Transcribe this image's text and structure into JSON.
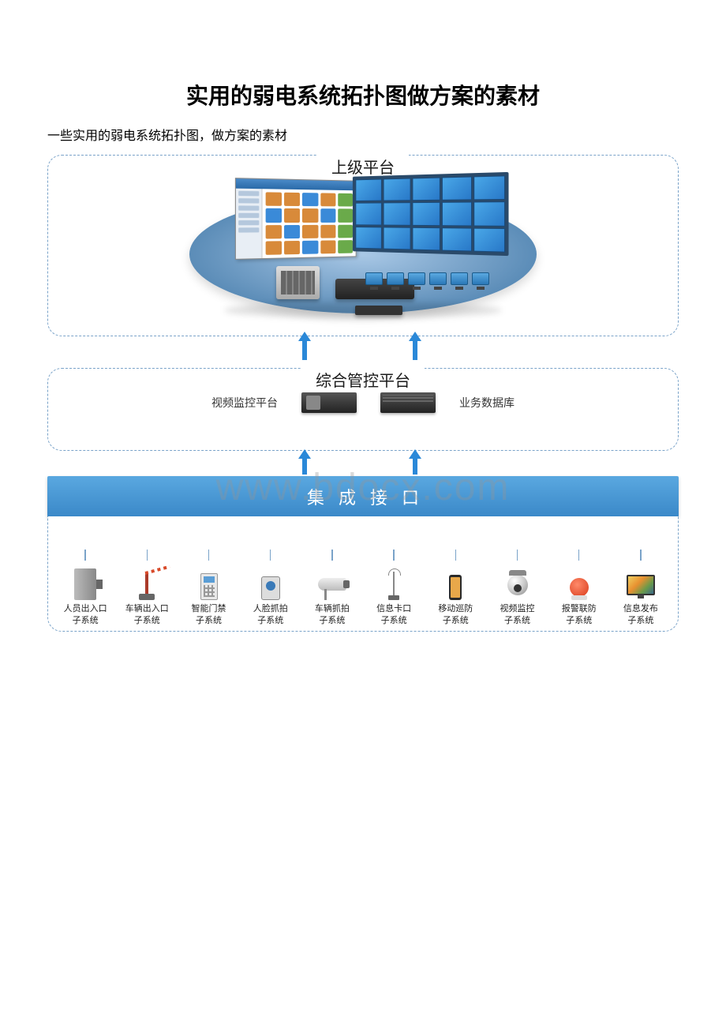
{
  "page": {
    "title": "实用的弱电系统拓扑图做方案的素材",
    "subtitle": "一些实用的弱电系统拓扑图，做方案的素材",
    "watermark": "www.bdocx.com"
  },
  "diagram": {
    "border_color": "#7aa3c9",
    "arrow_color": "#2a88d8",
    "tier1": {
      "title": "上级平台",
      "platform_gradient": [
        "#a9c8e6",
        "#5c8db8",
        "#4a7ba8"
      ],
      "videowall_cell_color": "#3a90d8",
      "workstation_count": 6
    },
    "tier2": {
      "title": "综合管控平台",
      "left_label": "视频监控平台",
      "right_label": "业务数据库"
    },
    "tier3": {
      "bar_label": "集成接口",
      "bar_bg": "#4a98d8",
      "bar_text_color": "#ffffff",
      "letter_spacing": 18
    },
    "tier4": {
      "subsystems": [
        {
          "label": "人员出入口\n子系统",
          "icon": "gate"
        },
        {
          "label": "车辆出入口\n子系统",
          "icon": "barrier"
        },
        {
          "label": "智能门禁\n子系统",
          "icon": "keypad"
        },
        {
          "label": "人脸抓拍\n子系统",
          "icon": "face"
        },
        {
          "label": "车辆抓拍\n子系统",
          "icon": "camera"
        },
        {
          "label": "信息卡口\n子系统",
          "icon": "antenna"
        },
        {
          "label": "移动巡防\n子系统",
          "icon": "phone"
        },
        {
          "label": "视频监控\n子系统",
          "icon": "dome"
        },
        {
          "label": "报警联防\n子系统",
          "icon": "alarm"
        },
        {
          "label": "信息发布\n子系统",
          "icon": "display"
        }
      ]
    }
  },
  "typography": {
    "title_fontsize": 28,
    "subtitle_fontsize": 16,
    "tier_title_fontsize": 20,
    "bar_fontsize": 22,
    "sublabel_fontsize": 11
  }
}
